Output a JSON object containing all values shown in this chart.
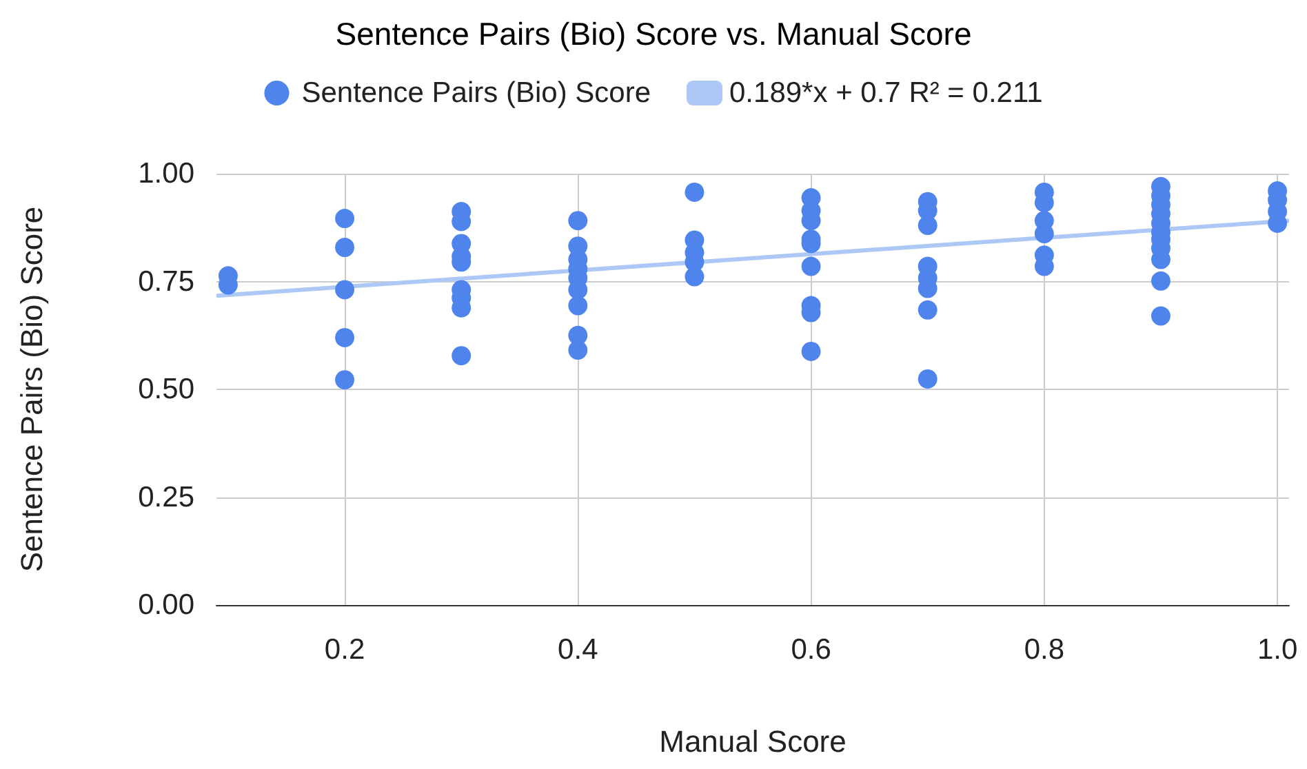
{
  "chart_data": {
    "type": "scatter",
    "title": "Sentence Pairs (Bio) Score vs. Manual Score",
    "xlabel": "Manual Score",
    "ylabel": "Sentence Pairs (Bio) Score",
    "xlim": [
      0.09,
      1.01
    ],
    "ylim": [
      0,
      1
    ],
    "xticks": [
      0.2,
      0.4,
      0.6,
      0.8,
      {
        "value": 1,
        "label": "1.0"
      }
    ],
    "yticks": [
      {
        "value": 0,
        "label": "0.00"
      },
      {
        "value": 0.25,
        "label": "0.25"
      },
      {
        "value": 0.5,
        "label": "0.50"
      },
      {
        "value": 0.75,
        "label": "0.75"
      },
      {
        "value": 1,
        "label": "1.00"
      }
    ],
    "grid": true,
    "legend": "top",
    "series": [
      {
        "name": "Sentence Pairs (Bio) Score",
        "marker": "circle",
        "color": "#4f84ec",
        "x": [
          0.1,
          0.1,
          0.2,
          0.2,
          0.2,
          0.2,
          0.2,
          0.3,
          0.3,
          0.3,
          0.3,
          0.3,
          0.3,
          0.3,
          0.3,
          0.3,
          0.4,
          0.4,
          0.4,
          0.4,
          0.4,
          0.4,
          0.4,
          0.4,
          0.4,
          0.5,
          0.5,
          0.5,
          0.5,
          0.5,
          0.6,
          0.6,
          0.6,
          0.6,
          0.6,
          0.6,
          0.6,
          0.6,
          0.6,
          0.7,
          0.7,
          0.7,
          0.7,
          0.7,
          0.7,
          0.7,
          0.7,
          0.8,
          0.8,
          0.8,
          0.8,
          0.8,
          0.8,
          0.9,
          0.9,
          0.9,
          0.9,
          0.9,
          0.9,
          0.9,
          0.9,
          0.9,
          0.9,
          0.9,
          1,
          1,
          1,
          1
        ],
        "values": [
          0.763,
          0.742,
          0.896,
          0.829,
          0.731,
          0.62,
          0.522,
          0.912,
          0.889,
          0.838,
          0.808,
          0.795,
          0.731,
          0.712,
          0.689,
          0.578,
          0.891,
          0.832,
          0.801,
          0.779,
          0.758,
          0.731,
          0.694,
          0.625,
          0.591,
          0.957,
          0.846,
          0.817,
          0.795,
          0.761,
          0.944,
          0.914,
          0.891,
          0.848,
          0.838,
          0.785,
          0.694,
          0.678,
          0.588,
          0.935,
          0.914,
          0.88,
          0.785,
          0.758,
          0.734,
          0.684,
          0.524,
          0.957,
          0.933,
          0.891,
          0.861,
          0.811,
          0.785,
          0.97,
          0.949,
          0.928,
          0.907,
          0.885,
          0.864,
          0.848,
          0.827,
          0.801,
          0.751,
          0.67,
          0.96,
          0.939,
          0.912,
          0.885
        ]
      },
      {
        "name": "0.189*x + 0.7 R² = 0.211",
        "type": "line",
        "marker": "none",
        "color": "#adc8f6",
        "x": [
          0.09,
          1.01
        ],
        "values": [
          0.717,
          0.891
        ]
      }
    ]
  }
}
